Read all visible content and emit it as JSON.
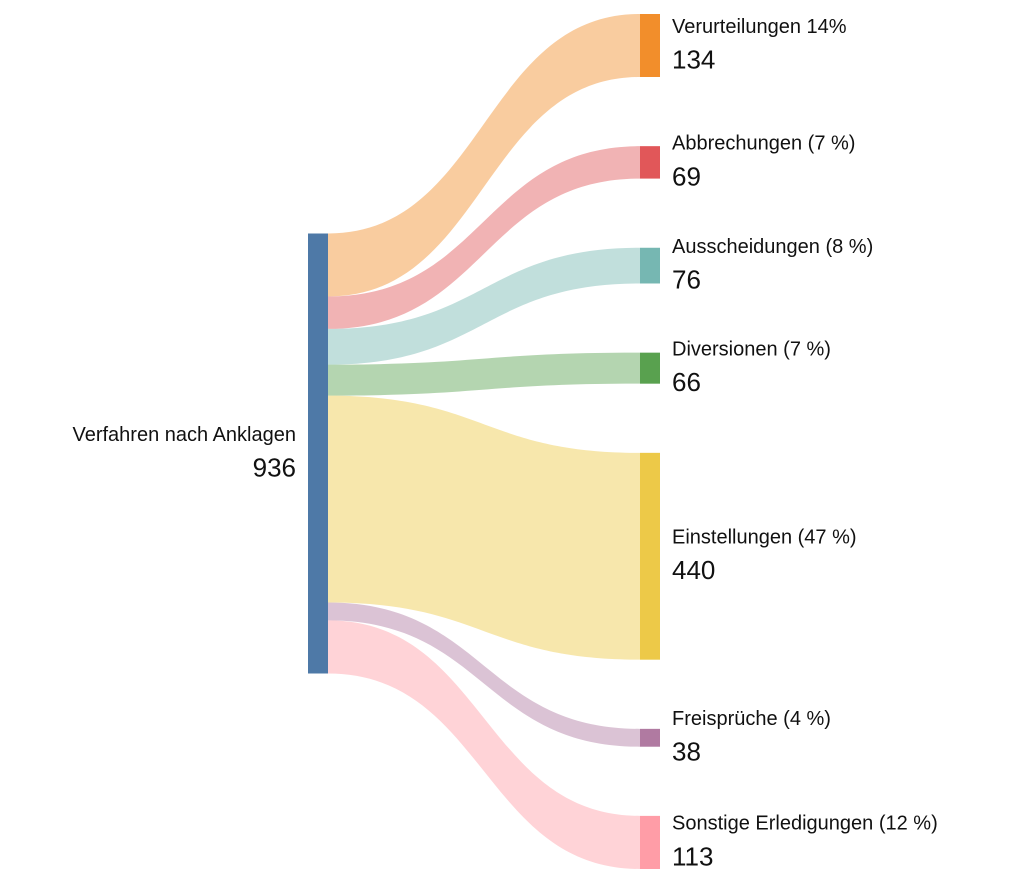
{
  "chart_data": {
    "type": "sankey",
    "source": {
      "name": "Verfahren nach Anklagen",
      "value": 936,
      "color": "#4e79a7"
    },
    "targets": [
      {
        "name": "Verurteilungen 14%",
        "value": 134,
        "color": "#f28e2b"
      },
      {
        "name": "Abbrechungen (7 %)",
        "value": 69,
        "color": "#e15759"
      },
      {
        "name": "Ausscheidungen (8 %)",
        "value": 76,
        "color": "#76b7b2"
      },
      {
        "name": "Diversionen (7 %)",
        "value": 66,
        "color": "#59a14f"
      },
      {
        "name": "Einstellungen (47 %)",
        "value": 440,
        "color": "#edc948"
      },
      {
        "name": "Freisprüche (4 %)",
        "value": 38,
        "color": "#b07aa1"
      },
      {
        "name": "Sonstige Erledigungen (12 %)",
        "value": 113,
        "color": "#ff9da7"
      }
    ]
  }
}
